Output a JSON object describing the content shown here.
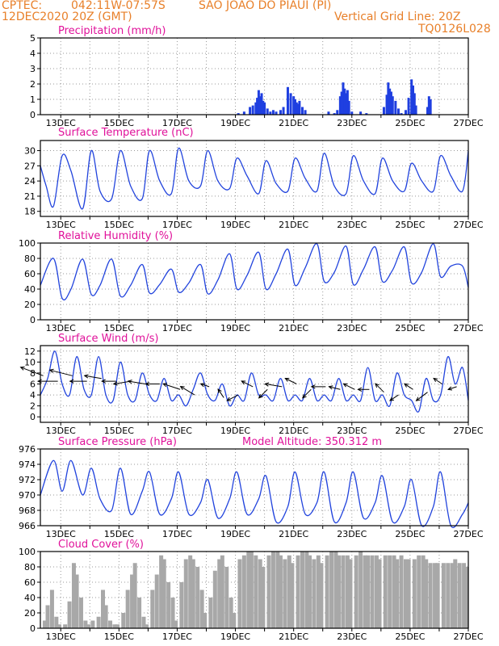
{
  "header": {
    "source": "CPTEC:",
    "coords": "042:11W-07:57S",
    "location": "SAO JOAO DO PIAUI (PI)",
    "run": "12DEC2020 20Z (GMT)",
    "grid_note": "Vertical Grid Line: 20Z",
    "model_code": "TQ0126L028"
  },
  "x_ticks": [
    "13DEC",
    "15DEC",
    "17DEC",
    "19DEC",
    "21DEC",
    "23DEC",
    "25DEC",
    "27DEC"
  ],
  "colors": {
    "line": "#2244dd",
    "bar_precip": "#1f3fe0",
    "bar_cloud": "#a8a8a8",
    "title": "#e0119a",
    "header": "#e8802a"
  },
  "chart_data": [
    {
      "type": "bar",
      "title": "Precipitation (mm/h)",
      "ylim": [
        0,
        5
      ],
      "yticks": [
        0,
        1,
        2,
        3,
        4,
        5
      ],
      "xlim": [
        12.3,
        27
      ],
      "x": [
        19.1,
        19.3,
        19.5,
        19.6,
        19.7,
        19.75,
        19.8,
        19.85,
        19.9,
        19.95,
        20.0,
        20.1,
        20.2,
        20.3,
        20.4,
        20.55,
        20.65,
        20.8,
        20.9,
        21.0,
        21.05,
        21.1,
        21.15,
        21.2,
        21.3,
        21.4,
        22.2,
        22.4,
        22.5,
        22.6,
        22.65,
        22.7,
        22.75,
        22.8,
        22.85,
        22.9,
        23.0,
        23.3,
        23.5,
        24.1,
        24.2,
        24.25,
        24.3,
        24.35,
        24.4,
        24.5,
        24.6,
        24.7,
        24.85,
        24.95,
        25.05,
        25.1,
        25.15,
        25.2,
        25.6,
        25.65,
        25.7
      ],
      "values": [
        0.1,
        0.2,
        0.5,
        0.6,
        0.8,
        1.1,
        1.6,
        1.2,
        1.4,
        0.9,
        0.8,
        0.4,
        0.2,
        0.3,
        0.2,
        0.3,
        0.5,
        1.8,
        1.4,
        1.2,
        1.0,
        0.8,
        0.7,
        0.9,
        0.5,
        0.3,
        0.2,
        0.1,
        0.3,
        1.2,
        1.5,
        2.1,
        1.7,
        1.4,
        1.6,
        0.9,
        0.2,
        0.2,
        0.1,
        0.5,
        1.3,
        2.1,
        1.7,
        1.5,
        1.2,
        0.9,
        0.4,
        0.1,
        0.3,
        1.1,
        2.3,
        1.9,
        1.4,
        0.6,
        0.5,
        1.2,
        1.0
      ]
    },
    {
      "type": "line",
      "title": "Surface Temperature (nC)",
      "ylim": [
        17,
        32
      ],
      "yticks": [
        18,
        21,
        24,
        27,
        30
      ],
      "xlim": [
        12.3,
        27
      ],
      "x": [
        12.3,
        12.5,
        12.75,
        13.05,
        13.35,
        13.75,
        14.05,
        14.35,
        14.75,
        15.05,
        15.4,
        15.8,
        16.05,
        16.4,
        16.8,
        17.05,
        17.4,
        17.8,
        18.05,
        18.4,
        18.8,
        19.05,
        19.4,
        19.8,
        20.05,
        20.4,
        20.8,
        21.05,
        21.4,
        21.8,
        22.05,
        22.4,
        22.8,
        23.05,
        23.4,
        23.8,
        24.05,
        24.4,
        24.8,
        25.05,
        25.4,
        25.8,
        26.05,
        26.4,
        26.8,
        27.0
      ],
      "values": [
        27,
        23,
        19,
        29,
        26,
        18.5,
        30,
        22,
        20.5,
        30,
        23,
        20.5,
        30,
        24,
        21.5,
        30.5,
        24,
        23,
        30,
        24,
        22.5,
        28.5,
        25,
        21.5,
        28,
        23.5,
        22,
        28.5,
        24.5,
        22,
        29.5,
        23,
        21.5,
        29,
        24,
        21.5,
        28.5,
        24,
        22,
        27.5,
        24,
        22,
        29,
        25,
        22,
        30
      ]
    },
    {
      "type": "line",
      "title": "Relative Humidity (%)",
      "ylim": [
        0,
        100
      ],
      "yticks": [
        0,
        20,
        40,
        60,
        80,
        100
      ],
      "xlim": [
        12.3,
        27
      ],
      "x": [
        12.3,
        12.75,
        13.05,
        13.35,
        13.75,
        14.05,
        14.35,
        14.75,
        15.05,
        15.4,
        15.8,
        16.05,
        16.4,
        16.8,
        17.05,
        17.4,
        17.8,
        18.05,
        18.4,
        18.8,
        19.05,
        19.4,
        19.8,
        20.05,
        20.4,
        20.8,
        21.05,
        21.4,
        21.8,
        22.05,
        22.4,
        22.8,
        23.05,
        23.4,
        23.8,
        24.05,
        24.4,
        24.8,
        25.05,
        25.4,
        25.8,
        26.05,
        26.4,
        26.8,
        27.0
      ],
      "values": [
        45,
        80,
        28,
        40,
        79,
        33,
        45,
        79,
        31,
        45,
        72,
        35,
        46,
        66,
        36,
        48,
        72,
        34,
        52,
        86,
        40,
        58,
        88,
        40,
        60,
        92,
        45,
        68,
        99,
        50,
        62,
        96,
        46,
        66,
        95,
        50,
        65,
        95,
        48,
        62,
        99,
        56,
        70,
        70,
        42
      ]
    },
    {
      "type": "line",
      "title": "Surface Wind (m/s)",
      "ylim": [
        -1,
        13
      ],
      "yticks": [
        0,
        2,
        4,
        6,
        8,
        10,
        12
      ],
      "xlim": [
        12.3,
        27
      ],
      "x": [
        12.3,
        12.55,
        12.8,
        13.05,
        13.3,
        13.55,
        13.8,
        14.05,
        14.3,
        14.55,
        14.8,
        15.05,
        15.3,
        15.55,
        15.8,
        16.05,
        16.3,
        16.55,
        16.8,
        17.05,
        17.3,
        17.55,
        17.8,
        18.05,
        18.3,
        18.55,
        18.8,
        19.05,
        19.3,
        19.55,
        19.8,
        20.05,
        20.3,
        20.55,
        20.8,
        21.05,
        21.3,
        21.55,
        21.8,
        22.05,
        22.3,
        22.55,
        22.8,
        23.05,
        23.3,
        23.55,
        23.8,
        24.05,
        24.3,
        24.55,
        24.8,
        25.05,
        25.3,
        25.55,
        25.8,
        26.05,
        26.3,
        26.55,
        26.8,
        27.0
      ],
      "values": [
        4,
        7,
        12,
        6,
        4,
        11,
        5,
        4,
        11,
        4,
        3,
        10,
        4,
        3,
        8,
        4,
        3,
        7,
        3,
        4,
        2,
        5,
        8,
        4,
        3,
        6,
        2,
        4,
        3,
        8,
        4,
        4,
        3,
        7,
        3,
        4,
        3,
        7,
        3,
        4,
        3,
        7,
        3,
        4,
        3,
        9,
        3,
        4,
        2,
        8,
        4,
        3,
        1,
        7,
        3,
        4,
        11,
        6,
        9,
        3
      ],
      "arrows": {
        "x": [
          12.4,
          12.9,
          13.4,
          13.9,
          14.4,
          14.9,
          15.4,
          15.9,
          16.4,
          17.1,
          17.6,
          18.1,
          18.6,
          19.1,
          19.6,
          20.1,
          20.6,
          21.1,
          21.6,
          22.1,
          22.6,
          23.1,
          23.6,
          24.1,
          24.6,
          25.1,
          25.6,
          26.1,
          26.6
        ],
        "y": [
          7.5,
          6.5,
          7.5,
          6.5,
          7,
          6.5,
          6.5,
          6,
          6,
          5,
          4,
          5.5,
          3.5,
          4,
          5.5,
          5,
          5.5,
          6,
          5,
          5.5,
          5,
          5,
          5,
          4.5,
          4,
          5,
          4.5,
          6,
          5.5
        ],
        "u": [
          -8,
          -7,
          -8,
          -6,
          -6,
          -5,
          -6,
          -6,
          -5,
          -6,
          -5,
          -3,
          -2,
          -4,
          -4,
          -3,
          -6,
          -4,
          -3,
          -5,
          -4,
          -4,
          -4,
          -3,
          -3,
          -3,
          -4,
          -3,
          -3
        ],
        "v": [
          3,
          0,
          2,
          0,
          1,
          0,
          -1,
          1,
          0,
          2,
          3,
          1,
          3,
          -2,
          2,
          -3,
          1,
          2,
          -3,
          0,
          1,
          2,
          0,
          3,
          -2,
          2,
          -3,
          2,
          -1
        ]
      }
    },
    {
      "type": "line",
      "title": "Surface Pressure (hPa)",
      "annotation": "Model Altitude: 350.312 m",
      "ylim": [
        966,
        976
      ],
      "yticks": [
        966,
        968,
        970,
        972,
        974,
        976
      ],
      "xlim": [
        12.3,
        27
      ],
      "x": [
        12.3,
        12.75,
        13.05,
        13.35,
        13.75,
        14.05,
        14.35,
        14.75,
        15.05,
        15.4,
        15.8,
        16.05,
        16.4,
        16.8,
        17.05,
        17.4,
        17.8,
        18.05,
        18.4,
        18.8,
        19.05,
        19.4,
        19.8,
        20.05,
        20.4,
        20.8,
        21.05,
        21.4,
        21.8,
        22.05,
        22.4,
        22.8,
        23.05,
        23.4,
        23.8,
        24.05,
        24.4,
        24.8,
        25.05,
        25.4,
        25.8,
        26.05,
        26.4,
        26.8,
        27.0
      ],
      "values": [
        970,
        974.5,
        970.5,
        974.5,
        970,
        973.5,
        969.5,
        968,
        973.5,
        967.5,
        970.5,
        973,
        967.5,
        969.5,
        973,
        967.5,
        969,
        972,
        967,
        969.5,
        973,
        967.5,
        969.5,
        972.5,
        966.5,
        968.5,
        973,
        967.5,
        969,
        973,
        966.5,
        969,
        973,
        967,
        969,
        972.5,
        966.5,
        968.5,
        972,
        966,
        968.5,
        973,
        966,
        967.5,
        969
      ]
    },
    {
      "type": "bar",
      "title": "Cloud Cover (%)",
      "ylim": [
        0,
        100
      ],
      "yticks": [
        0,
        20,
        40,
        60,
        80,
        100
      ],
      "xlim": [
        12.3,
        27
      ],
      "x": [
        12.45,
        12.55,
        12.7,
        12.85,
        12.95,
        13.15,
        13.3,
        13.45,
        13.55,
        13.7,
        13.85,
        13.95,
        14.1,
        14.3,
        14.45,
        14.55,
        14.7,
        14.85,
        14.95,
        15.15,
        15.3,
        15.45,
        15.55,
        15.7,
        15.85,
        15.95,
        16.15,
        16.3,
        16.45,
        16.55,
        16.7,
        16.85,
        16.95,
        17.15,
        17.3,
        17.45,
        17.55,
        17.7,
        17.85,
        17.95,
        18.15,
        18.3,
        18.45,
        18.55,
        18.7,
        18.85,
        18.95,
        19.15,
        19.3,
        19.45,
        19.55,
        19.7,
        19.85,
        19.95,
        20.15,
        20.3,
        20.45,
        20.55,
        20.7,
        20.85,
        20.95,
        21.15,
        21.3,
        21.45,
        21.55,
        21.7,
        21.85,
        21.95,
        22.15,
        22.3,
        22.45,
        22.55,
        22.7,
        22.85,
        22.95,
        23.15,
        23.3,
        23.45,
        23.55,
        23.7,
        23.85,
        23.95,
        24.15,
        24.3,
        24.45,
        24.55,
        24.7,
        24.85,
        24.95,
        25.15,
        25.3,
        25.45,
        25.55,
        25.7,
        25.85,
        25.95,
        26.15,
        26.3,
        26.45,
        26.55,
        26.7,
        26.85,
        26.95
      ],
      "values": [
        10,
        30,
        50,
        15,
        5,
        5,
        35,
        85,
        70,
        40,
        10,
        5,
        10,
        15,
        50,
        30,
        10,
        5,
        5,
        20,
        50,
        70,
        85,
        40,
        15,
        5,
        50,
        70,
        95,
        90,
        60,
        40,
        10,
        60,
        90,
        95,
        90,
        80,
        50,
        20,
        40,
        75,
        90,
        95,
        80,
        40,
        20,
        90,
        95,
        100,
        100,
        95,
        90,
        80,
        95,
        100,
        100,
        95,
        90,
        95,
        85,
        95,
        100,
        100,
        95,
        90,
        95,
        85,
        95,
        100,
        100,
        95,
        95,
        95,
        90,
        95,
        100,
        95,
        95,
        95,
        95,
        90,
        95,
        95,
        95,
        90,
        95,
        90,
        90,
        90,
        95,
        95,
        90,
        85,
        85,
        85,
        85,
        85,
        85,
        90,
        85,
        85,
        80
      ]
    }
  ]
}
